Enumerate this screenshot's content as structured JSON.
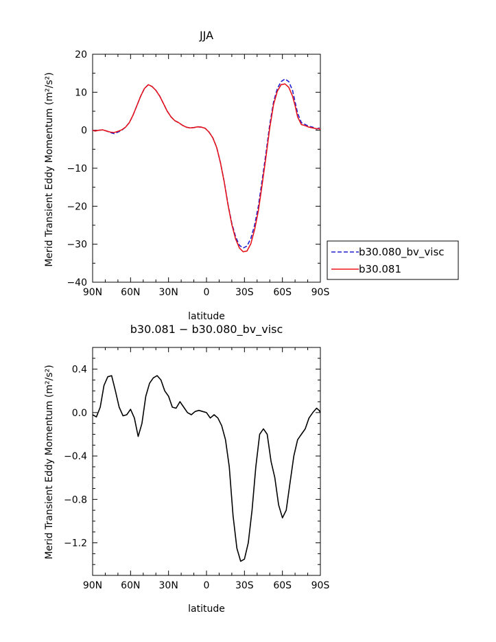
{
  "chart_data": [
    {
      "type": "line",
      "title": "JJA",
      "xlabel": "latitude",
      "ylabel": "Merid Transient Eddy Momentum (m²/s²)",
      "xlim": [
        -90,
        90
      ],
      "ylim": [
        -40,
        20
      ],
      "x_ticks": [
        -90,
        -60,
        -30,
        0,
        30,
        60,
        90
      ],
      "x_tick_labels": [
        "90N",
        "60N",
        "30N",
        "0",
        "30S",
        "60S",
        "90S"
      ],
      "y_ticks": [
        -40,
        -30,
        -20,
        -10,
        0,
        10,
        20
      ],
      "y_tick_labels": [
        "−40",
        "−30",
        "−20",
        "−10",
        "0",
        "10",
        "20"
      ],
      "grid": false,
      "legend_position": "right",
      "series": [
        {
          "name": "b30.080_bv_visc",
          "color": "#1f1fcf",
          "dash": "dashed",
          "x": [
            -90,
            -88,
            -85,
            -82,
            -79,
            -76,
            -73,
            -70,
            -67,
            -64,
            -61,
            -58,
            -55,
            -52,
            -49,
            -46,
            -43,
            -40,
            -37,
            -34,
            -31,
            -28,
            -25,
            -22,
            -19,
            -16,
            -13,
            -10,
            -7,
            -4,
            -1,
            2,
            5,
            8,
            11,
            14,
            17,
            20,
            23,
            26,
            29,
            32,
            35,
            38,
            41,
            44,
            47,
            50,
            53,
            56,
            59,
            62,
            65,
            68,
            70,
            72,
            75,
            78,
            81,
            84,
            87,
            89,
            90
          ],
          "y": [
            0.0,
            -0.2,
            0.0,
            0.1,
            -0.2,
            -0.6,
            -0.9,
            -0.5,
            0.0,
            0.8,
            2.0,
            4.0,
            6.5,
            9.0,
            11.0,
            12.0,
            11.5,
            10.5,
            9.0,
            7.0,
            5.0,
            3.5,
            2.5,
            2.0,
            1.3,
            0.8,
            0.6,
            0.7,
            0.9,
            0.8,
            0.5,
            -0.5,
            -2.0,
            -4.5,
            -8.5,
            -13.5,
            -19.5,
            -24.5,
            -28.0,
            -30.3,
            -31.0,
            -30.5,
            -28.5,
            -25.0,
            -20.0,
            -13.0,
            -6.0,
            1.5,
            7.5,
            11.0,
            12.8,
            13.5,
            12.8,
            10.5,
            7.5,
            4.5,
            2.0,
            1.5,
            1.0,
            0.8,
            0.3,
            0.6,
            0.2
          ]
        },
        {
          "name": "b30.081",
          "color": "#e8141b",
          "dash": "solid",
          "x": [
            -90,
            -88,
            -85,
            -82,
            -79,
            -76,
            -73,
            -70,
            -67,
            -64,
            -61,
            -58,
            -55,
            -52,
            -49,
            -46,
            -43,
            -40,
            -37,
            -34,
            -31,
            -28,
            -25,
            -22,
            -19,
            -16,
            -13,
            -10,
            -7,
            -4,
            -1,
            2,
            5,
            8,
            11,
            14,
            17,
            20,
            23,
            26,
            29,
            32,
            35,
            38,
            41,
            44,
            47,
            50,
            53,
            56,
            59,
            62,
            65,
            68,
            70,
            72,
            75,
            78,
            81,
            84,
            87,
            89,
            90
          ],
          "y": [
            0.0,
            -0.2,
            0.0,
            0.1,
            -0.2,
            -0.5,
            -0.6,
            -0.3,
            0.1,
            0.8,
            2.0,
            4.0,
            6.5,
            9.0,
            11.0,
            12.0,
            11.5,
            10.5,
            9.0,
            7.0,
            5.0,
            3.5,
            2.5,
            2.0,
            1.3,
            0.8,
            0.6,
            0.7,
            0.9,
            0.8,
            0.5,
            -0.5,
            -2.0,
            -4.5,
            -8.5,
            -13.6,
            -19.7,
            -24.8,
            -28.6,
            -31.0,
            -32.0,
            -31.8,
            -29.9,
            -26.2,
            -21.2,
            -14.2,
            -7.0,
            0.6,
            6.8,
            10.3,
            12.0,
            12.2,
            11.3,
            9.0,
            6.5,
            3.5,
            1.5,
            1.2,
            0.8,
            0.6,
            0.4,
            0.4,
            0.2
          ]
        }
      ]
    },
    {
      "type": "line",
      "title": "b30.081 − b30.080_bv_visc",
      "xlabel": "latitude",
      "ylabel": "Merid Transient Eddy Momentum (m²/s²)",
      "xlim": [
        -90,
        90
      ],
      "ylim": [
        -1.5,
        0.6
      ],
      "x_ticks": [
        -90,
        -60,
        -30,
        0,
        30,
        60,
        90
      ],
      "x_tick_labels": [
        "90N",
        "60N",
        "30N",
        "0",
        "30S",
        "60S",
        "90S"
      ],
      "y_ticks": [
        -1.2,
        -0.8,
        -0.4,
        0.0,
        0.4
      ],
      "y_tick_labels": [
        "−1.2",
        "−0.8",
        "−0.4",
        "0.0",
        "0.4"
      ],
      "grid": false,
      "series": [
        {
          "color": "#000000",
          "dash": "solid",
          "x": [
            -90,
            -87,
            -84,
            -81,
            -78,
            -75,
            -72,
            -69,
            -66,
            -63,
            -60,
            -57,
            -54,
            -51,
            -48,
            -45,
            -42,
            -39,
            -36,
            -33,
            -30,
            -27,
            -24,
            -21,
            -18,
            -15,
            -12,
            -9,
            -6,
            -3,
            0,
            3,
            6,
            9,
            12,
            15,
            18,
            21,
            24,
            27,
            30,
            33,
            36,
            39,
            42,
            45,
            48,
            51,
            54,
            57,
            60,
            63,
            66,
            69,
            72,
            75,
            78,
            81,
            84,
            87,
            89,
            90
          ],
          "y": [
            -0.02,
            -0.04,
            0.05,
            0.25,
            0.33,
            0.34,
            0.2,
            0.05,
            -0.03,
            -0.02,
            0.03,
            -0.05,
            -0.22,
            -0.1,
            0.15,
            0.27,
            0.32,
            0.34,
            0.3,
            0.2,
            0.15,
            0.05,
            0.04,
            0.1,
            0.05,
            0.0,
            -0.02,
            0.01,
            0.02,
            0.01,
            0.0,
            -0.05,
            -0.02,
            -0.05,
            -0.12,
            -0.25,
            -0.5,
            -0.95,
            -1.25,
            -1.37,
            -1.35,
            -1.2,
            -0.9,
            -0.5,
            -0.2,
            -0.15,
            -0.2,
            -0.45,
            -0.6,
            -0.85,
            -0.97,
            -0.9,
            -0.65,
            -0.4,
            -0.25,
            -0.2,
            -0.15,
            -0.05,
            0.0,
            0.04,
            0.02,
            0.0
          ]
        }
      ]
    }
  ]
}
